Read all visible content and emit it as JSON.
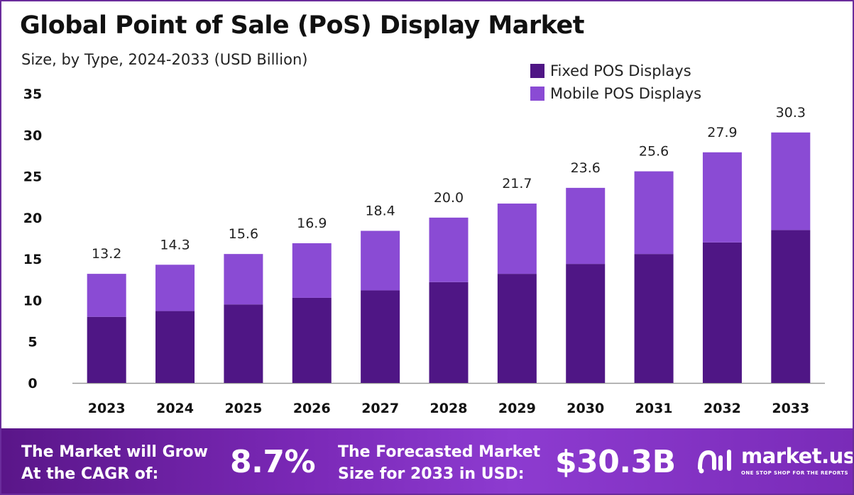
{
  "title": "Global Point of Sale (PoS) Display Market",
  "subtitle": "Size, by Type, 2024-2033 (USD Billion)",
  "colors": {
    "fixed": "#4f1685",
    "mobile": "#8a4bd4",
    "frame": "#6a2c9c"
  },
  "chart_data": {
    "type": "bar",
    "stacked": true,
    "categories": [
      "2023",
      "2024",
      "2025",
      "2026",
      "2027",
      "2028",
      "2029",
      "2030",
      "2031",
      "2032",
      "2033"
    ],
    "series": [
      {
        "name": "Fixed POS Displays",
        "values": [
          8.0,
          8.7,
          9.5,
          10.3,
          11.2,
          12.2,
          13.2,
          14.4,
          15.6,
          17.0,
          18.5
        ]
      },
      {
        "name": "Mobile POS Displays",
        "values": [
          5.2,
          5.6,
          6.1,
          6.6,
          7.2,
          7.8,
          8.5,
          9.2,
          10.0,
          10.9,
          11.8
        ]
      }
    ],
    "totals": [
      "13.2",
      "14.3",
      "15.6",
      "16.9",
      "18.4",
      "20.0",
      "21.7",
      "23.6",
      "25.6",
      "27.9",
      "30.3"
    ],
    "ylim": [
      0,
      35
    ],
    "yticks": [
      "0",
      "5",
      "10",
      "15",
      "20",
      "25",
      "30",
      "35"
    ],
    "grid": false,
    "legend_position": "top-right"
  },
  "footer": {
    "cagr_label_line1": "The Market will Grow",
    "cagr_label_line2": "At the CAGR of:",
    "cagr_value": "8.7%",
    "forecast_label_line1": "The Forecasted Market",
    "forecast_label_line2": "Size for 2033 in USD:",
    "forecast_value": "$30.3B",
    "brand_name": "market.us",
    "brand_tagline": "ONE STOP SHOP FOR THE REPORTS",
    "brand_icon": "market-us-logo-icon"
  }
}
